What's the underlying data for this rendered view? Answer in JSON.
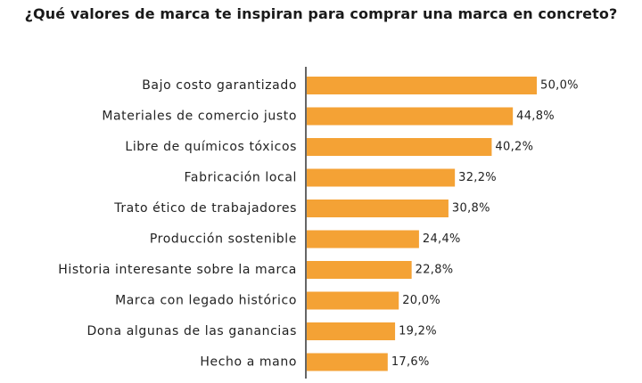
{
  "chart_data": {
    "type": "bar",
    "orientation": "horizontal",
    "title": "¿Qué valores de marca te inspiran para comprar una marca en concreto?",
    "categories": [
      "Bajo costo garantizado",
      "Materiales de comercio justo",
      "Libre de químicos tóxicos",
      "Fabricación local",
      "Trato ético de trabajadores",
      "Producción sostenible",
      "Historia interesante sobre la marca",
      "Marca con legado histórico",
      "Dona algunas de las ganancias",
      "Hecho a mano"
    ],
    "values": [
      50.0,
      44.8,
      40.2,
      32.2,
      30.8,
      24.4,
      22.8,
      20.0,
      19.2,
      17.6
    ],
    "value_labels": [
      "50,0%",
      "44,8%",
      "40,2%",
      "32,2%",
      "30,8%",
      "24,4%",
      "22,8%",
      "20,0%",
      "19,2%",
      "17,6%"
    ],
    "xlim": [
      0,
      50
    ],
    "grid": false,
    "legend": "none",
    "bar_color": "#F4A235",
    "axis_color": "#333333"
  }
}
